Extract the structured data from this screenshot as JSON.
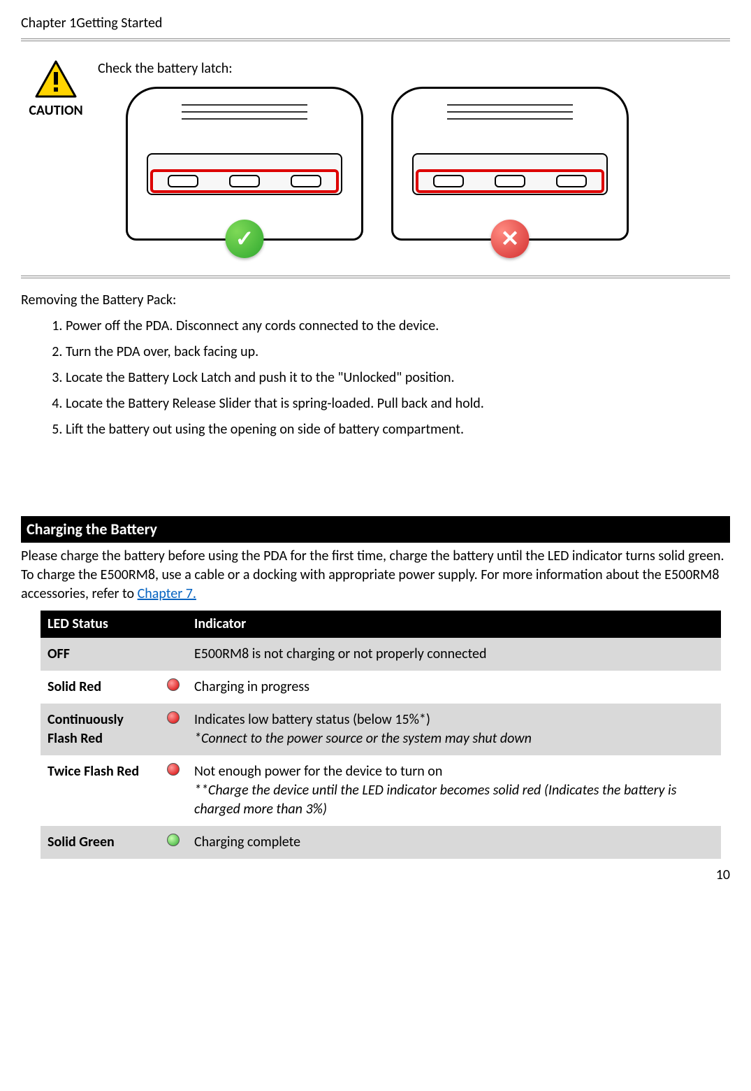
{
  "header": {
    "chapter_line": "Chapter 1Getting Started"
  },
  "caution": {
    "label": "CAUTION",
    "text": "Check the battery latch:",
    "icon_bg": "#ffd400",
    "icon_border": "#000000",
    "ok_color": "#2fa82f",
    "bad_color": "#d32f2f",
    "highlight_color": "#d00000"
  },
  "removing": {
    "title": "Removing the Battery Pack:",
    "steps": [
      "Power off the PDA. Disconnect any cords connected to the device.",
      "Turn the PDA over, back facing up.",
      "Locate the Battery Lock Latch and push it to the \"Unlocked\" position.",
      "Locate the Battery Release Slider that is spring-loaded. Pull back and hold.",
      "Lift the battery out using the opening on side of battery compartment."
    ]
  },
  "charging": {
    "heading": "Charging the Battery",
    "intro_pre": "Please charge the battery before using the PDA for the first time, charge the battery until the LED indicator turns solid green. To charge the E500RM8, use a cable or a docking with appropriate power supply. For more information about the E500RM8 accessories, refer to ",
    "intro_link": "Chapter 7.",
    "table": {
      "col1": "LED Status",
      "col2": "Indicator",
      "rows": [
        {
          "status": "OFF",
          "icon": "none",
          "desc": "E500RM8 is not charging or not properly connected",
          "note": "",
          "grey": true
        },
        {
          "status": "Solid Red",
          "icon": "red",
          "desc": "Charging in progress",
          "note": "",
          "grey": false
        },
        {
          "status": "Continuously Flash Red",
          "icon": "red",
          "desc": "Indicates low battery status (below 15%*)",
          "note": "*Connect to the power source or the system may shut down",
          "grey": true
        },
        {
          "status": "Twice Flash Red",
          "icon": "red",
          "desc": "Not enough power for the device to turn on",
          "note": "**Charge the device until the LED indicator becomes solid red (Indicates the battery is charged more than 3%)",
          "grey": false
        },
        {
          "status": "Solid Green",
          "icon": "green",
          "desc": "Charging complete",
          "note": "",
          "grey": true
        }
      ],
      "colors": {
        "red": "#d40000",
        "green": "#2fa82f"
      }
    }
  },
  "page_number": "10"
}
